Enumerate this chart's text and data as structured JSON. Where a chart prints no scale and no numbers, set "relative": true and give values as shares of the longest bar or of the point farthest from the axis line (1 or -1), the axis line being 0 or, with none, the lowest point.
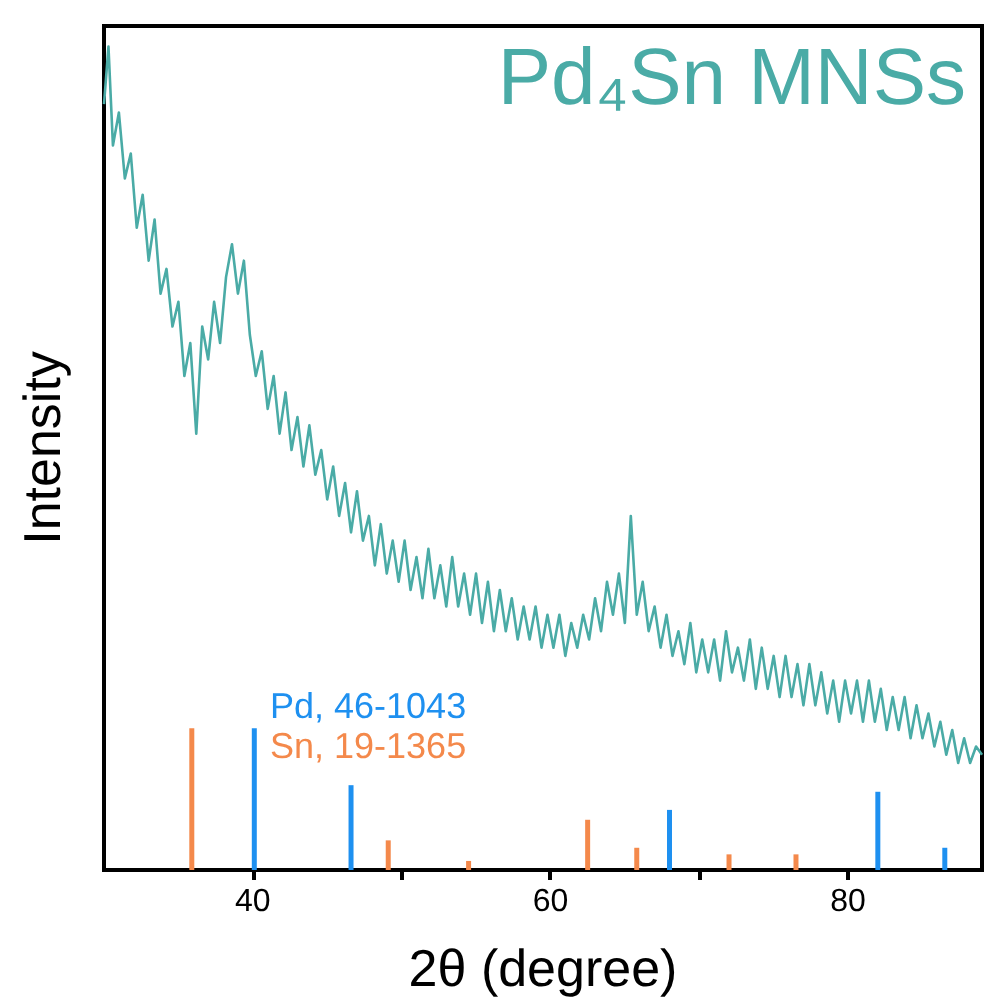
{
  "chart_data": {
    "type": "line",
    "relative": true,
    "xlabel": "2θ (degree)",
    "ylabel": "Intensity",
    "xlim": [
      30,
      89
    ],
    "xticks": [
      40,
      {
        "value": 50,
        "label": null
      },
      60,
      {
        "value": 70,
        "label": null
      },
      80
    ],
    "legend": "top right",
    "grid": false,
    "marker": "none",
    "series": [
      {
        "name": "Pd₄Sn MNSs",
        "color": "#4aaba6",
        "x": [
          30.0,
          30.3,
          30.6,
          31.0,
          31.4,
          31.8,
          32.2,
          32.6,
          33.0,
          33.4,
          33.8,
          34.2,
          34.6,
          35.0,
          35.4,
          35.8,
          36.2,
          36.6,
          37.0,
          37.4,
          37.8,
          38.2,
          38.6,
          39.0,
          39.4,
          39.8,
          40.2,
          40.6,
          41.0,
          41.4,
          41.8,
          42.2,
          42.6,
          43.0,
          43.4,
          43.8,
          44.2,
          44.6,
          45.0,
          45.4,
          45.8,
          46.2,
          46.6,
          47.0,
          47.4,
          47.8,
          48.2,
          48.6,
          49.0,
          49.4,
          49.8,
          50.2,
          50.6,
          51.0,
          51.4,
          51.8,
          52.2,
          52.6,
          53.0,
          53.4,
          53.8,
          54.2,
          54.6,
          55.0,
          55.4,
          55.8,
          56.2,
          56.6,
          57.0,
          57.4,
          57.8,
          58.2,
          58.6,
          59.0,
          59.4,
          59.8,
          60.2,
          60.6,
          61.0,
          61.4,
          61.8,
          62.2,
          62.6,
          63.0,
          63.4,
          63.8,
          64.2,
          64.6,
          65.0,
          65.4,
          65.8,
          66.2,
          66.6,
          67.0,
          67.4,
          67.8,
          68.2,
          68.6,
          69.0,
          69.4,
          69.8,
          70.2,
          70.6,
          71.0,
          71.4,
          71.8,
          72.2,
          72.6,
          73.0,
          73.4,
          73.8,
          74.2,
          74.6,
          75.0,
          75.4,
          75.8,
          76.2,
          76.6,
          77.0,
          77.4,
          77.8,
          78.2,
          78.6,
          79.0,
          79.4,
          79.8,
          80.2,
          80.6,
          81.0,
          81.4,
          81.8,
          82.2,
          82.6,
          83.0,
          83.4,
          83.8,
          84.2,
          84.6,
          85.0,
          85.4,
          85.8,
          86.2,
          86.6,
          87.0,
          87.4,
          87.8,
          88.2,
          88.6,
          89.0
        ],
        "values": [
          0.93,
          1.0,
          0.88,
          0.92,
          0.84,
          0.87,
          0.78,
          0.82,
          0.74,
          0.79,
          0.7,
          0.73,
          0.66,
          0.69,
          0.6,
          0.64,
          0.53,
          0.66,
          0.62,
          0.69,
          0.64,
          0.72,
          0.76,
          0.7,
          0.74,
          0.65,
          0.6,
          0.63,
          0.56,
          0.6,
          0.53,
          0.58,
          0.51,
          0.55,
          0.49,
          0.54,
          0.48,
          0.51,
          0.45,
          0.49,
          0.43,
          0.47,
          0.41,
          0.46,
          0.4,
          0.43,
          0.37,
          0.42,
          0.36,
          0.4,
          0.35,
          0.4,
          0.34,
          0.38,
          0.33,
          0.39,
          0.33,
          0.37,
          0.32,
          0.38,
          0.32,
          0.36,
          0.31,
          0.36,
          0.3,
          0.35,
          0.29,
          0.34,
          0.29,
          0.33,
          0.28,
          0.32,
          0.28,
          0.32,
          0.27,
          0.31,
          0.27,
          0.31,
          0.26,
          0.3,
          0.27,
          0.31,
          0.28,
          0.33,
          0.29,
          0.35,
          0.31,
          0.36,
          0.3,
          0.43,
          0.31,
          0.35,
          0.29,
          0.32,
          0.27,
          0.31,
          0.26,
          0.29,
          0.25,
          0.3,
          0.24,
          0.28,
          0.24,
          0.28,
          0.23,
          0.29,
          0.24,
          0.27,
          0.23,
          0.28,
          0.22,
          0.27,
          0.22,
          0.26,
          0.21,
          0.26,
          0.21,
          0.25,
          0.2,
          0.25,
          0.2,
          0.24,
          0.19,
          0.23,
          0.18,
          0.23,
          0.19,
          0.23,
          0.18,
          0.23,
          0.18,
          0.22,
          0.17,
          0.21,
          0.17,
          0.21,
          0.16,
          0.2,
          0.16,
          0.19,
          0.15,
          0.18,
          0.14,
          0.17,
          0.13,
          0.16,
          0.13,
          0.15,
          0.14
        ]
      },
      {
        "name": "Pd, 46-1043",
        "color": "#1e90f0",
        "type": "bar",
        "x": [
          40.1,
          46.6,
          68.0,
          82.0,
          86.5
        ],
        "values": [
          0.172,
          0.103,
          0.073,
          0.095,
          0.027
        ]
      },
      {
        "name": "Sn, 19-1365",
        "color": "#f4894b",
        "type": "bar",
        "x": [
          35.9,
          49.1,
          54.5,
          62.5,
          65.8,
          72.0,
          76.5
        ],
        "values": [
          0.172,
          0.036,
          0.011,
          0.061,
          0.027,
          0.019,
          0.019
        ]
      }
    ]
  }
}
